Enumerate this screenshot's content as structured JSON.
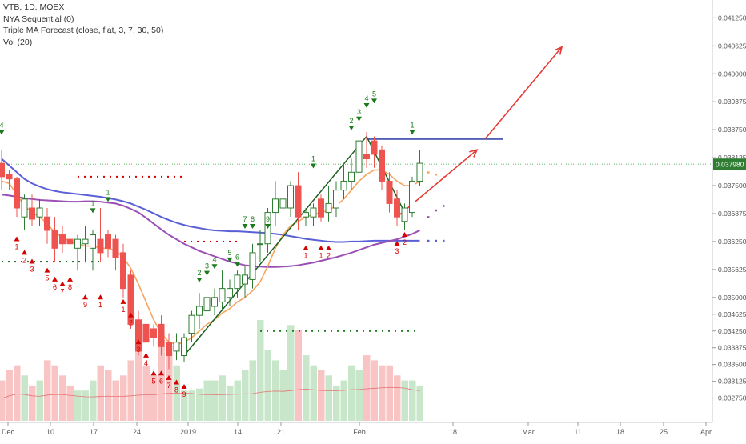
{
  "legend": {
    "symbol_line": "VTB, 1D, MOEX",
    "indicator_1": "NYA Sequential (0)",
    "indicator_2": "Triple MA Forecast (close, flat, 3, 7, 30, 50)",
    "indicator_3": "Vol (20)"
  },
  "price_tag": "0.037980",
  "colors": {
    "up_candle": "#ffffff",
    "up_outline": "#2e7d32",
    "down_candle": "#ef5350",
    "ma_fast": "#f4a460",
    "ma_mid": "#9b4fb5",
    "ma_slow": "#5a5fd6",
    "trend_green": "#1b5e20",
    "forecast_red": "#e53935",
    "level_blue": "#3949ab",
    "tag_green": "#2e7d32",
    "buy_marker": "#1b7a1b",
    "sell_marker": "#d50000",
    "vol_up": "#c8e6c9",
    "vol_down": "#f8c4c4"
  },
  "chart_data": {
    "type": "candlestick",
    "symbol": "VTB",
    "interval": "1D",
    "exchange": "MOEX",
    "ylim": [
      0.0326,
      0.0414
    ],
    "y_ticks": [
      "0.041250",
      "0.040625",
      "0.040000",
      "0.039375",
      "0.038750",
      "0.038125",
      "0.037500",
      "0.036875",
      "0.036250",
      "0.035625",
      "0.035000",
      "0.034625",
      "0.034250",
      "0.033875",
      "0.033500",
      "0.033125",
      "0.032750"
    ],
    "x_ticks": [
      "Dec",
      "10",
      "17",
      "24",
      "2019",
      "14",
      "21",
      "Feb",
      "18",
      "Mar",
      "11",
      "18",
      "25",
      "Apr"
    ],
    "candles": [
      {
        "o": 0.038,
        "h": 0.0383,
        "l": 0.0374,
        "c": 0.0377
      },
      {
        "o": 0.03775,
        "h": 0.03785,
        "l": 0.0374,
        "c": 0.03765
      },
      {
        "o": 0.03765,
        "h": 0.0377,
        "l": 0.0368,
        "c": 0.037
      },
      {
        "o": 0.0368,
        "h": 0.0373,
        "l": 0.0365,
        "c": 0.0372
      },
      {
        "o": 0.037,
        "h": 0.0373,
        "l": 0.0366,
        "c": 0.03675
      },
      {
        "o": 0.0368,
        "h": 0.0372,
        "l": 0.0366,
        "c": 0.037
      },
      {
        "o": 0.0368,
        "h": 0.037,
        "l": 0.0362,
        "c": 0.0365
      },
      {
        "o": 0.0365,
        "h": 0.0368,
        "l": 0.0358,
        "c": 0.0361
      },
      {
        "o": 0.0364,
        "h": 0.0366,
        "l": 0.036,
        "c": 0.0362
      },
      {
        "o": 0.0363,
        "h": 0.0365,
        "l": 0.0359,
        "c": 0.0362
      },
      {
        "o": 0.0361,
        "h": 0.0364,
        "l": 0.0356,
        "c": 0.0363
      },
      {
        "o": 0.0362,
        "h": 0.0366,
        "l": 0.0358,
        "c": 0.0363
      },
      {
        "o": 0.0361,
        "h": 0.0365,
        "l": 0.0356,
        "c": 0.0364
      },
      {
        "o": 0.0363,
        "h": 0.037,
        "l": 0.0358,
        "c": 0.036
      },
      {
        "o": 0.0364,
        "h": 0.0365,
        "l": 0.0359,
        "c": 0.0361
      },
      {
        "o": 0.0363,
        "h": 0.0364,
        "l": 0.0356,
        "c": 0.0359
      },
      {
        "o": 0.036,
        "h": 0.0362,
        "l": 0.035,
        "c": 0.0352
      },
      {
        "o": 0.0355,
        "h": 0.0356,
        "l": 0.0343,
        "c": 0.0344
      },
      {
        "o": 0.0345,
        "h": 0.0347,
        "l": 0.0337,
        "c": 0.0338
      },
      {
        "o": 0.0344,
        "h": 0.0346,
        "l": 0.0339,
        "c": 0.034
      },
      {
        "o": 0.0343,
        "h": 0.0344,
        "l": 0.0339,
        "c": 0.0341
      },
      {
        "o": 0.0344,
        "h": 0.0346,
        "l": 0.0337,
        "c": 0.0339
      },
      {
        "o": 0.034,
        "h": 0.0342,
        "l": 0.0334,
        "c": 0.0337
      },
      {
        "o": 0.0338,
        "h": 0.0342,
        "l": 0.0336,
        "c": 0.034
      },
      {
        "o": 0.0337,
        "h": 0.0342,
        "l": 0.03355,
        "c": 0.0341
      },
      {
        "o": 0.0342,
        "h": 0.0347,
        "l": 0.034,
        "c": 0.0346
      },
      {
        "o": 0.0346,
        "h": 0.0351,
        "l": 0.0343,
        "c": 0.0348
      },
      {
        "o": 0.0347,
        "h": 0.0352,
        "l": 0.0345,
        "c": 0.035
      },
      {
        "o": 0.0348,
        "h": 0.0352,
        "l": 0.0346,
        "c": 0.035
      },
      {
        "o": 0.0349,
        "h": 0.0356,
        "l": 0.0347,
        "c": 0.0352
      },
      {
        "o": 0.035,
        "h": 0.0354,
        "l": 0.0348,
        "c": 0.0352
      },
      {
        "o": 0.0352,
        "h": 0.0356,
        "l": 0.035,
        "c": 0.0355
      },
      {
        "o": 0.0353,
        "h": 0.0357,
        "l": 0.035,
        "c": 0.0355
      },
      {
        "o": 0.0354,
        "h": 0.0362,
        "l": 0.0352,
        "c": 0.036
      },
      {
        "o": 0.0362,
        "h": 0.0365,
        "l": 0.0358,
        "c": 0.0362
      },
      {
        "o": 0.0362,
        "h": 0.037,
        "l": 0.036,
        "c": 0.0369
      },
      {
        "o": 0.0369,
        "h": 0.0376,
        "l": 0.0366,
        "c": 0.0372
      },
      {
        "o": 0.037,
        "h": 0.0373,
        "l": 0.0369,
        "c": 0.0372
      },
      {
        "o": 0.037,
        "h": 0.0376,
        "l": 0.0368,
        "c": 0.0375
      },
      {
        "o": 0.0375,
        "h": 0.0378,
        "l": 0.0365,
        "c": 0.0368
      },
      {
        "o": 0.0368,
        "h": 0.037,
        "l": 0.0366,
        "c": 0.0369
      },
      {
        "o": 0.0368,
        "h": 0.0371,
        "l": 0.0366,
        "c": 0.037
      },
      {
        "o": 0.0372,
        "h": 0.0373,
        "l": 0.0367,
        "c": 0.0368
      },
      {
        "o": 0.0369,
        "h": 0.0375,
        "l": 0.0367,
        "c": 0.0371
      },
      {
        "o": 0.037,
        "h": 0.0376,
        "l": 0.0368,
        "c": 0.0374
      },
      {
        "o": 0.0374,
        "h": 0.038,
        "l": 0.0372,
        "c": 0.0376
      },
      {
        "o": 0.0376,
        "h": 0.0381,
        "l": 0.0374,
        "c": 0.0378
      },
      {
        "o": 0.0378,
        "h": 0.0386,
        "l": 0.0376,
        "c": 0.0385
      },
      {
        "o": 0.0382,
        "h": 0.0387,
        "l": 0.0379,
        "c": 0.0381
      },
      {
        "o": 0.0385,
        "h": 0.0386,
        "l": 0.0379,
        "c": 0.0382
      },
      {
        "o": 0.0383,
        "h": 0.0384,
        "l": 0.0374,
        "c": 0.0376
      },
      {
        "o": 0.0376,
        "h": 0.0378,
        "l": 0.0369,
        "c": 0.0371
      },
      {
        "o": 0.0372,
        "h": 0.0374,
        "l": 0.0366,
        "c": 0.0368
      },
      {
        "o": 0.0367,
        "h": 0.0371,
        "l": 0.0365,
        "c": 0.037
      },
      {
        "o": 0.0369,
        "h": 0.0377,
        "l": 0.0368,
        "c": 0.0376
      },
      {
        "o": 0.0376,
        "h": 0.0383,
        "l": 0.0375,
        "c": 0.038
      }
    ],
    "ma_fast": [
      0.0376,
      0.03755,
      0.0373,
      0.03705,
      0.0369,
      0.0368,
      0.03665,
      0.03645,
      0.03635,
      0.03625,
      0.0362,
      0.03615,
      0.03615,
      0.0361,
      0.0361,
      0.03605,
      0.0359,
      0.03565,
      0.0353,
      0.0349,
      0.0345,
      0.0342,
      0.034,
      0.03395,
      0.034,
      0.0341,
      0.03425,
      0.0344,
      0.0345,
      0.03465,
      0.03475,
      0.0349,
      0.035,
      0.03515,
      0.03535,
      0.0357,
      0.0361,
      0.0364,
      0.0366,
      0.0367,
      0.0368,
      0.03685,
      0.0369,
      0.03695,
      0.03705,
      0.0372,
      0.0374,
      0.0376,
      0.03775,
      0.03785,
      0.03785,
      0.03775,
      0.0376,
      0.0375,
      0.0375,
      0.0376
    ],
    "ma_mid": [
      0.0373,
      0.03728,
      0.03725,
      0.03722,
      0.0372,
      0.03718,
      0.03717,
      0.03716,
      0.03715,
      0.03714,
      0.03714,
      0.03715,
      0.03715,
      0.03714,
      0.03712,
      0.0371,
      0.03705,
      0.03698,
      0.0369,
      0.03678,
      0.03665,
      0.03652,
      0.0364,
      0.0363,
      0.0362,
      0.03612,
      0.03604,
      0.03598,
      0.03592,
      0.03586,
      0.0358,
      0.03576,
      0.03572,
      0.0357,
      0.03569,
      0.03568,
      0.03568,
      0.03569,
      0.0357,
      0.03572,
      0.03575,
      0.03578,
      0.03582,
      0.03586,
      0.0359,
      0.03595,
      0.036,
      0.03606,
      0.03612,
      0.03618,
      0.03622,
      0.03626,
      0.0363,
      0.03636,
      0.03642,
      0.0365
    ],
    "ma_slow": [
      0.0381,
      0.03795,
      0.0378,
      0.03765,
      0.03755,
      0.03748,
      0.03742,
      0.03738,
      0.03735,
      0.03733,
      0.03731,
      0.03729,
      0.03727,
      0.03725,
      0.03722,
      0.03719,
      0.03715,
      0.0371,
      0.03703,
      0.03696,
      0.03688,
      0.0368,
      0.03673,
      0.03667,
      0.03662,
      0.03658,
      0.03655,
      0.03652,
      0.0365,
      0.03649,
      0.03648,
      0.03648,
      0.03647,
      0.03646,
      0.03645,
      0.03644,
      0.03642,
      0.0364,
      0.03637,
      0.03634,
      0.03631,
      0.03629,
      0.03627,
      0.03625,
      0.03624,
      0.03624,
      0.03625,
      0.03625,
      0.03626,
      0.03627,
      0.03627,
      0.03627,
      0.03627,
      0.03627,
      0.03627,
      0.03627
    ],
    "volume": [
      0.4,
      0.5,
      0.55,
      0.45,
      0.35,
      0.4,
      0.6,
      0.55,
      0.45,
      0.35,
      0.3,
      0.3,
      0.4,
      0.55,
      0.5,
      0.4,
      0.45,
      0.6,
      0.7,
      0.55,
      0.45,
      0.8,
      0.75,
      0.55,
      0.3,
      0.3,
      0.32,
      0.4,
      0.4,
      0.45,
      0.35,
      0.4,
      0.5,
      0.6,
      1.0,
      0.7,
      0.6,
      0.5,
      0.95,
      0.9,
      0.65,
      0.55,
      0.5,
      0.45,
      0.35,
      0.4,
      0.55,
      0.5,
      0.65,
      0.6,
      0.55,
      0.55,
      0.45,
      0.4,
      0.4,
      0.35
    ],
    "buy_labels": [
      [
        "4",
        0.0386
      ],
      [
        "1",
        0.03685
      ],
      [
        "1",
        0.0371
      ],
      [
        "2",
        0.0353
      ],
      [
        "3",
        0.03545
      ],
      [
        "4",
        0.0356
      ],
      [
        "5",
        0.03575
      ],
      [
        "6",
        0.03565
      ],
      [
        "7",
        0.0365
      ],
      [
        "8",
        0.0365
      ],
      [
        "9",
        0.0365
      ],
      [
        "1",
        0.03785
      ],
      [
        "2",
        0.0387
      ],
      [
        "3",
        0.0389
      ],
      [
        "4",
        0.0392
      ],
      [
        "5",
        0.0393
      ],
      [
        "1",
        0.0386
      ]
    ],
    "sell_labels": [
      [
        "1",
        0.0364
      ],
      [
        "2",
        0.0361
      ],
      [
        "3",
        0.0359
      ],
      [
        "5",
        0.0357
      ],
      [
        "6",
        0.0355
      ],
      [
        "7",
        0.0354
      ],
      [
        "8",
        0.0355
      ],
      [
        "9",
        0.0351
      ],
      [
        "1",
        0.0351
      ],
      [
        "1",
        0.035
      ],
      [
        "2",
        0.0347
      ],
      [
        "3",
        0.0341
      ],
      [
        "4",
        0.0338
      ],
      [
        "5",
        0.0334
      ],
      [
        "6",
        0.0334
      ],
      [
        "7",
        0.0333
      ],
      [
        "8",
        0.0332
      ],
      [
        "9",
        0.0331
      ],
      [
        "1",
        0.0362
      ],
      [
        "1",
        0.0362
      ],
      [
        "2",
        0.0362
      ],
      [
        "2",
        0.0365
      ],
      [
        "3",
        0.0363
      ]
    ],
    "last_price": 0.03798,
    "resistance_level": 0.03854
  }
}
